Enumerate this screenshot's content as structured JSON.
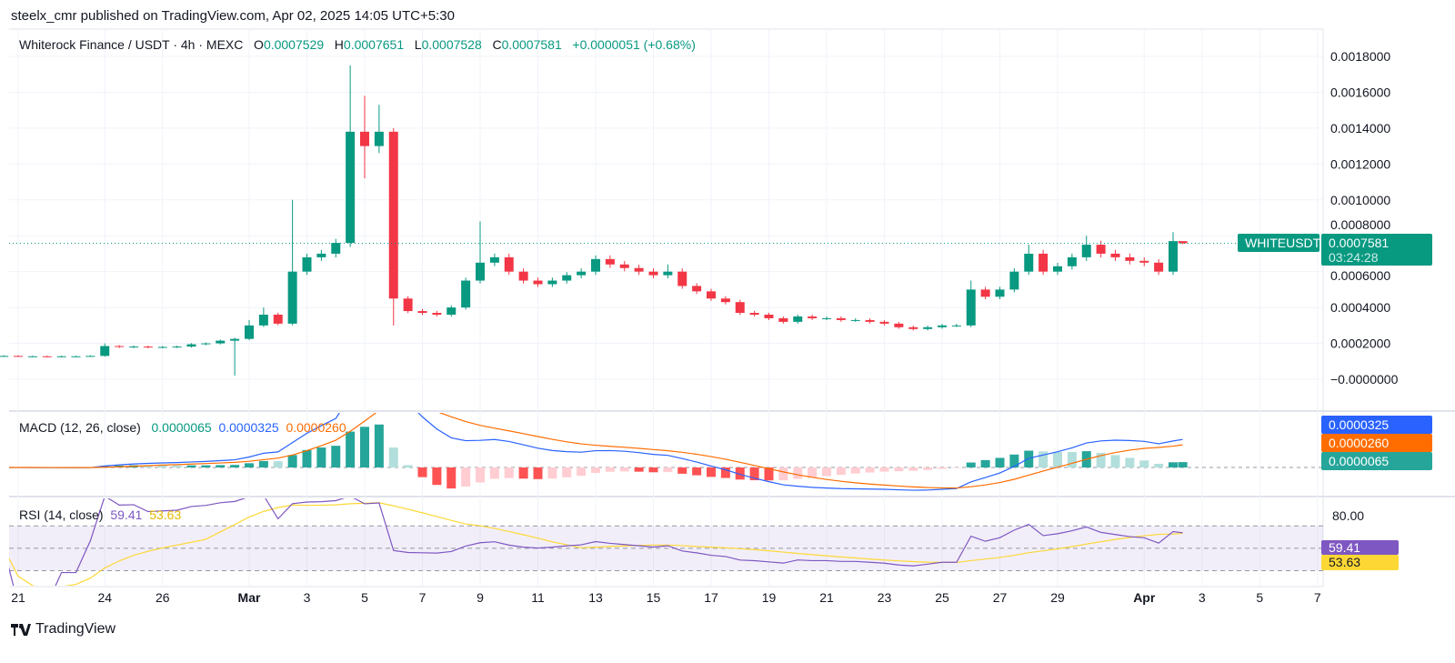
{
  "header": {
    "publish_line": "steelx_cmr published on TradingView.com, Apr 02, 2025 14:05 UTC+5:30"
  },
  "legend": {
    "symbol": "Whiterock Finance / USDT · 4h · MEXC",
    "o_label": "O",
    "o": "0.0007529",
    "h_label": "H",
    "h": "0.0007651",
    "l_label": "L",
    "l": "0.0007528",
    "c_label": "C",
    "c": "0.0007581",
    "change": "+0.0000051 (+0.68%)"
  },
  "price_tag": {
    "symbol": "WHITEUSDT",
    "price": "0.0007581",
    "countdown": "03:24:28"
  },
  "macd": {
    "title": "MACD (12, 26, close)",
    "hist": "0.0000065",
    "macd": "0.0000325",
    "signal": "0.0000260"
  },
  "rsi": {
    "title": "RSI (14, close)",
    "rsi": "59.41",
    "ma": "53.63",
    "top_tick": "80.00"
  },
  "footer": {
    "brand": "TradingView"
  },
  "colors": {
    "up": "#089981",
    "down": "#f23645",
    "macd": "#2962ff",
    "signal": "#ff6d00",
    "rsi": "#7e57c2",
    "rsi_ma": "#fdd835",
    "hist_up": "#26a69a",
    "hist_up_light": "#b2dfdb",
    "hist_dn": "#ff5252",
    "hist_dn_light": "#ffcdd2"
  },
  "chart_data": {
    "type": "candlestick",
    "ylim": [
      -2e-05,
      0.00185
    ],
    "y_ticks": [
      "0.0018000",
      "0.0016000",
      "0.0014000",
      "0.0012000",
      "0.0010000",
      "0.0008000",
      "0.0006000",
      "0.0004000",
      "0.0002000",
      "−0.0000000"
    ],
    "y_tick_values": [
      0.0018,
      0.0016,
      0.0014,
      0.0012,
      0.001,
      0.0008,
      0.0006,
      0.0004,
      0.0002,
      0
    ],
    "x_ticks": [
      {
        "label": "21",
        "date": "2025-02-21"
      },
      {
        "label": "24",
        "date": "2025-02-24"
      },
      {
        "label": "26",
        "date": "2025-02-26"
      },
      {
        "label": "Mar",
        "date": "2025-03-01"
      },
      {
        "label": "3",
        "date": "2025-03-03"
      },
      {
        "label": "5",
        "date": "2025-03-05"
      },
      {
        "label": "7",
        "date": "2025-03-07"
      },
      {
        "label": "9",
        "date": "2025-03-09"
      },
      {
        "label": "11",
        "date": "2025-03-11"
      },
      {
        "label": "13",
        "date": "2025-03-13"
      },
      {
        "label": "15",
        "date": "2025-03-15"
      },
      {
        "label": "17",
        "date": "2025-03-17"
      },
      {
        "label": "19",
        "date": "2025-03-19"
      },
      {
        "label": "21",
        "date": "2025-03-21"
      },
      {
        "label": "23",
        "date": "2025-03-23"
      },
      {
        "label": "25",
        "date": "2025-03-25"
      },
      {
        "label": "27",
        "date": "2025-03-27"
      },
      {
        "label": "29",
        "date": "2025-03-29"
      },
      {
        "label": "Apr",
        "date": "2025-04-01"
      },
      {
        "label": "3",
        "date": "2025-04-03"
      },
      {
        "label": "5",
        "date": "2025-04-05"
      },
      {
        "label": "7",
        "date": "2025-04-07"
      }
    ],
    "rsi_bands": [
      70,
      50,
      30
    ],
    "candles_t_c_h_l": [
      [
        "2025-02-20T12",
        0.00013,
        null,
        null
      ],
      [
        "2025-02-21T00",
        0.000128,
        null,
        null
      ],
      [
        "2025-02-21T12",
        0.000128,
        null,
        null
      ],
      [
        "2025-02-22T00",
        0.000127,
        null,
        null
      ],
      [
        "2025-02-22T12",
        0.000128,
        null,
        null
      ],
      [
        "2025-02-23T00",
        0.000128,
        null,
        null
      ],
      [
        "2025-02-23T12",
        0.00013,
        null,
        null
      ],
      [
        "2025-02-24T00",
        0.000185,
        0.0002,
        null
      ],
      [
        "2025-02-24T12",
        0.00018,
        null,
        null
      ],
      [
        "2025-02-25T00",
        0.000182,
        null,
        null
      ],
      [
        "2025-02-25T12",
        0.000178,
        null,
        null
      ],
      [
        "2025-02-26T00",
        0.00018,
        null,
        null
      ],
      [
        "2025-02-26T12",
        0.000182,
        null,
        null
      ],
      [
        "2025-02-27T00",
        0.000195,
        null,
        null
      ],
      [
        "2025-02-27T12",
        0.0002,
        null,
        null
      ],
      [
        "2025-02-28T00",
        0.000215,
        null,
        null
      ],
      [
        "2025-02-28T12",
        0.000225,
        null,
        2e-05
      ],
      [
        "2025-03-01T00",
        0.0003,
        0.00033,
        null
      ],
      [
        "2025-03-01T12",
        0.00036,
        0.0004,
        null
      ],
      [
        "2025-03-02T00",
        0.00031,
        null,
        null
      ],
      [
        "2025-03-02T12",
        0.0006,
        0.001,
        null
      ],
      [
        "2025-03-03T00",
        0.00068,
        null,
        null
      ],
      [
        "2025-03-03T12",
        0.0007,
        null,
        null
      ],
      [
        "2025-03-04T00",
        0.00076,
        null,
        null
      ],
      [
        "2025-03-04T12",
        0.00138,
        0.00175,
        null
      ],
      [
        "2025-03-05T00",
        0.0013,
        0.00158,
        0.00112
      ],
      [
        "2025-03-05T12",
        0.00138,
        0.00153,
        null
      ],
      [
        "2025-03-06T00",
        0.00045,
        0.0014,
        0.0003
      ],
      [
        "2025-03-06T12",
        0.00038,
        null,
        null
      ],
      [
        "2025-03-07T00",
        0.00037,
        null,
        null
      ],
      [
        "2025-03-07T12",
        0.00036,
        null,
        null
      ],
      [
        "2025-03-08T00",
        0.0004,
        null,
        null
      ],
      [
        "2025-03-08T12",
        0.00055,
        null,
        null
      ],
      [
        "2025-03-09T00",
        0.00065,
        0.00088,
        null
      ],
      [
        "2025-03-09T12",
        0.00068,
        null,
        null
      ],
      [
        "2025-03-10T00",
        0.0006,
        null,
        null
      ],
      [
        "2025-03-10T12",
        0.00055,
        null,
        null
      ],
      [
        "2025-03-11T00",
        0.00053,
        null,
        null
      ],
      [
        "2025-03-11T12",
        0.00055,
        null,
        null
      ],
      [
        "2025-03-12T00",
        0.00058,
        null,
        null
      ],
      [
        "2025-03-12T12",
        0.0006,
        null,
        null
      ],
      [
        "2025-03-13T00",
        0.00067,
        null,
        null
      ],
      [
        "2025-03-13T12",
        0.00064,
        null,
        null
      ],
      [
        "2025-03-14T00",
        0.00062,
        null,
        null
      ],
      [
        "2025-03-14T12",
        0.0006,
        null,
        null
      ],
      [
        "2025-03-15T00",
        0.00058,
        null,
        null
      ],
      [
        "2025-03-15T12",
        0.0006,
        0.00064,
        null
      ],
      [
        "2025-03-16T00",
        0.00052,
        null,
        null
      ],
      [
        "2025-03-16T12",
        0.00049,
        null,
        null
      ],
      [
        "2025-03-17T00",
        0.00045,
        null,
        null
      ],
      [
        "2025-03-17T12",
        0.00043,
        null,
        null
      ],
      [
        "2025-03-18T00",
        0.00037,
        null,
        null
      ],
      [
        "2025-03-18T12",
        0.00036,
        null,
        null
      ],
      [
        "2025-03-19T00",
        0.00034,
        null,
        null
      ],
      [
        "2025-03-19T12",
        0.00032,
        null,
        null
      ],
      [
        "2025-03-20T00",
        0.00035,
        null,
        null
      ],
      [
        "2025-03-20T12",
        0.00034,
        null,
        null
      ],
      [
        "2025-03-21T00",
        0.00034,
        null,
        null
      ],
      [
        "2025-03-21T12",
        0.00033,
        null,
        null
      ],
      [
        "2025-03-22T00",
        0.00033,
        null,
        null
      ],
      [
        "2025-03-22T12",
        0.00032,
        null,
        null
      ],
      [
        "2025-03-23T00",
        0.00031,
        null,
        null
      ],
      [
        "2025-03-23T12",
        0.00029,
        null,
        null
      ],
      [
        "2025-03-24T00",
        0.00028,
        null,
        null
      ],
      [
        "2025-03-24T12",
        0.00029,
        null,
        null
      ],
      [
        "2025-03-25T00",
        0.0003,
        null,
        null
      ],
      [
        "2025-03-25T12",
        0.0003,
        null,
        null
      ],
      [
        "2025-03-26T00",
        0.0005,
        0.00055,
        null
      ],
      [
        "2025-03-26T12",
        0.00046,
        null,
        null
      ],
      [
        "2025-03-27T00",
        0.0005,
        null,
        null
      ],
      [
        "2025-03-27T12",
        0.0006,
        null,
        null
      ],
      [
        "2025-03-28T00",
        0.0007,
        0.00075,
        null
      ],
      [
        "2025-03-28T12",
        0.0006,
        null,
        null
      ],
      [
        "2025-03-29T00",
        0.00063,
        null,
        null
      ],
      [
        "2025-03-29T12",
        0.00068,
        null,
        null
      ],
      [
        "2025-03-30T00",
        0.00075,
        0.0008,
        null
      ],
      [
        "2025-03-30T12",
        0.0007,
        null,
        null
      ],
      [
        "2025-03-31T00",
        0.00068,
        null,
        null
      ],
      [
        "2025-03-31T12",
        0.00066,
        null,
        null
      ],
      [
        "2025-04-01T00",
        0.00065,
        null,
        null
      ],
      [
        "2025-04-01T12",
        0.0006,
        null,
        null
      ],
      [
        "2025-04-02T00",
        0.00077,
        0.00082,
        null
      ],
      [
        "2025-04-02T08",
        0.0007581,
        0.0007651,
        0.0007528
      ]
    ]
  }
}
